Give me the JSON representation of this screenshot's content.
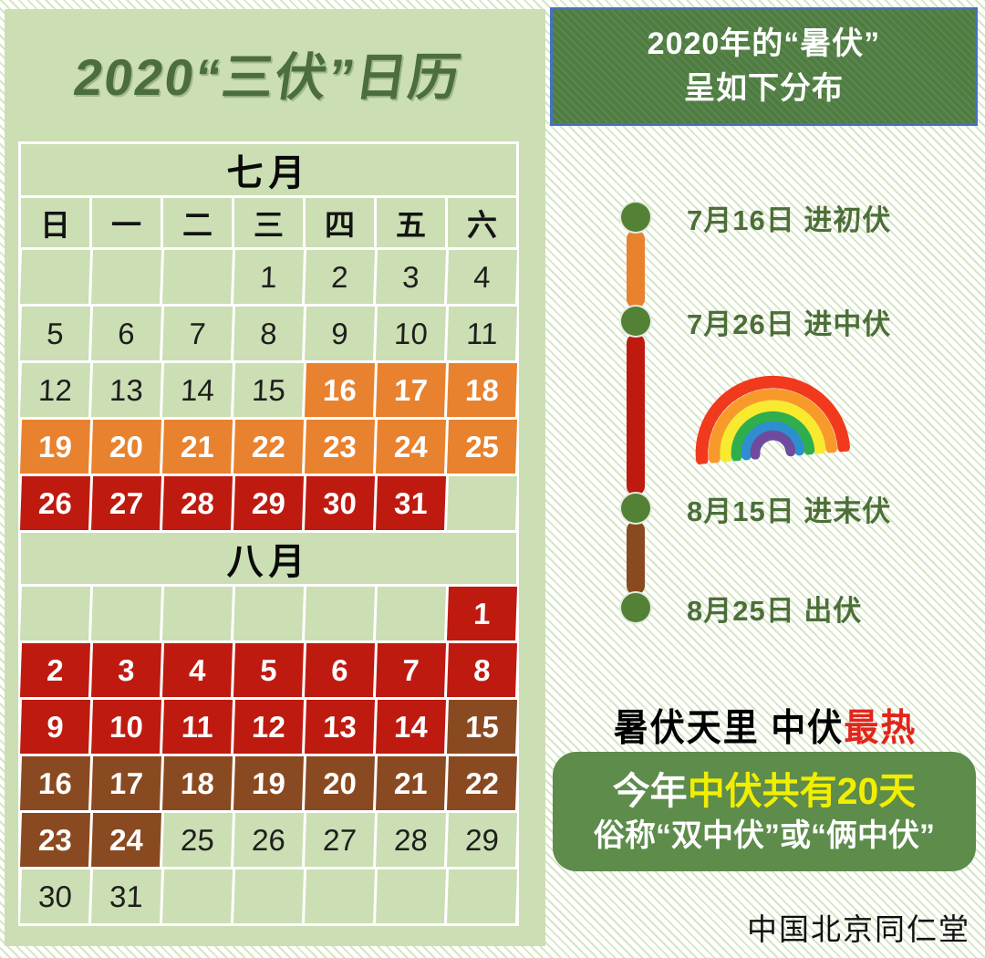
{
  "left": {
    "title": "2020“三伏”日历"
  },
  "calendar": {
    "weekdays": [
      "日",
      "一",
      "二",
      "三",
      "四",
      "五",
      "六"
    ],
    "sections": [
      {
        "title": "七月",
        "show_weekdays": true,
        "rows": [
          [
            "",
            "",
            "",
            "1",
            "2",
            "3",
            "4"
          ],
          [
            "5",
            "6",
            "7",
            "8",
            "9",
            "10",
            "11"
          ],
          [
            "12",
            "13",
            "14",
            "15",
            "16|chufu",
            "17|chufu",
            "18|chufu"
          ],
          [
            "19|chufu",
            "20|chufu",
            "21|chufu",
            "22|chufu",
            "23|chufu",
            "24|chufu",
            "25|chufu"
          ],
          [
            "26|zhongfu",
            "27|zhongfu",
            "28|zhongfu",
            "29|zhongfu",
            "30|zhongfu",
            "31|zhongfu",
            ""
          ]
        ]
      },
      {
        "title": "八月",
        "show_weekdays": false,
        "rows": [
          [
            "",
            "",
            "",
            "",
            "",
            "",
            "1|zhongfu"
          ],
          [
            "2|zhongfu",
            "3|zhongfu",
            "4|zhongfu",
            "5|zhongfu",
            "6|zhongfu",
            "7|zhongfu",
            "8|zhongfu"
          ],
          [
            "9|zhongfu",
            "10|zhongfu",
            "11|zhongfu",
            "12|zhongfu",
            "13|zhongfu",
            "14|zhongfu",
            "15|mofu"
          ],
          [
            "16|mofu",
            "17|mofu",
            "18|mofu",
            "19|mofu",
            "20|mofu",
            "21|mofu",
            "22|mofu"
          ],
          [
            "23|mofu",
            "24|mofu",
            "25",
            "26",
            "27",
            "28",
            "29"
          ],
          [
            "30",
            "31",
            "",
            "",
            "",
            "",
            ""
          ]
        ]
      }
    ]
  },
  "right": {
    "header": {
      "line1": "2020年的“暑伏”",
      "line2": "呈如下分布"
    },
    "timeline": [
      {
        "label": "7月16日 进初伏",
        "segment": "chufu"
      },
      {
        "label": "7月26日 进中伏",
        "segment": "zhongfu"
      },
      {
        "label": "8月15日 进末伏",
        "segment": "mofu"
      },
      {
        "label": "8月25日 出伏",
        "segment": ""
      }
    ],
    "caption": {
      "black_part": "暑伏天里 中伏",
      "red_part": "最热"
    },
    "note": {
      "line1_white": "今年",
      "line1_yellow": "中伏共有20天",
      "line2": "俗称“双中伏”或“俩中伏”"
    },
    "brand": "中国北京同仁堂"
  },
  "colors": {
    "chufu": "#e8822f",
    "zhongfu": "#bf1a10",
    "mofu": "#8a4a21",
    "panel_green": "#cbdeb4",
    "dark_green_text": "#4c6f38",
    "header_box_green": "#4e7c41",
    "header_box_border": "#4472c4",
    "timeline_dot_green": "#538135",
    "note_box_green": "#5d8c4b",
    "note_yellow": "#f2ee00",
    "caption_red": "#e2251b"
  },
  "rainbow_colors": [
    "#f13a1d",
    "#f79a2a",
    "#f8ea2f",
    "#2fae4d",
    "#2e8fd0",
    "#6f4b9e"
  ]
}
